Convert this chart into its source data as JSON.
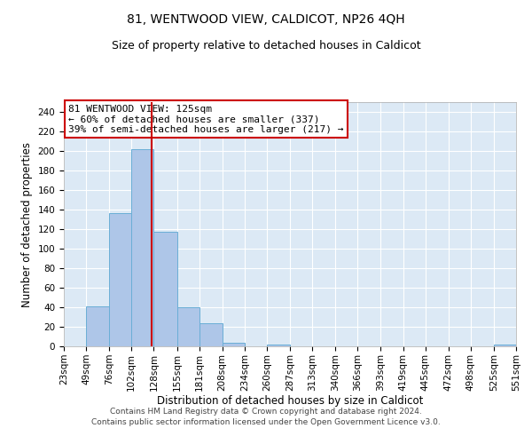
{
  "title1": "81, WENTWOOD VIEW, CALDICOT, NP26 4QH",
  "title2": "Size of property relative to detached houses in Caldicot",
  "xlabel": "Distribution of detached houses by size in Caldicot",
  "ylabel": "Number of detached properties",
  "footer1": "Contains HM Land Registry data © Crown copyright and database right 2024.",
  "footer2": "Contains public sector information licensed under the Open Government Licence v3.0.",
  "annotation_line1": "81 WENTWOOD VIEW: 125sqm",
  "annotation_line2": "← 60% of detached houses are smaller (337)",
  "annotation_line3": "39% of semi-detached houses are larger (217) →",
  "property_size": 125,
  "bar_color": "#aec6e8",
  "bar_edgecolor": "#6aaed6",
  "vline_color": "#cc0000",
  "annotation_box_edgecolor": "#cc0000",
  "background_color": "#ffffff",
  "axes_facecolor": "#dce9f5",
  "grid_color": "#ffffff",
  "bins": [
    23,
    49,
    76,
    102,
    128,
    155,
    181,
    208,
    234,
    260,
    287,
    313,
    340,
    366,
    393,
    419,
    445,
    472,
    498,
    525,
    551
  ],
  "counts": [
    0,
    41,
    136,
    202,
    117,
    40,
    24,
    4,
    0,
    2,
    0,
    0,
    0,
    0,
    0,
    0,
    0,
    0,
    0,
    2
  ],
  "ylim": [
    0,
    250
  ],
  "yticks": [
    0,
    20,
    40,
    60,
    80,
    100,
    120,
    140,
    160,
    180,
    200,
    220,
    240
  ],
  "title_fontsize": 10,
  "subtitle_fontsize": 9,
  "annotation_fontsize": 8,
  "axis_label_fontsize": 8.5,
  "tick_fontsize": 7.5,
  "footer_fontsize": 6.5
}
